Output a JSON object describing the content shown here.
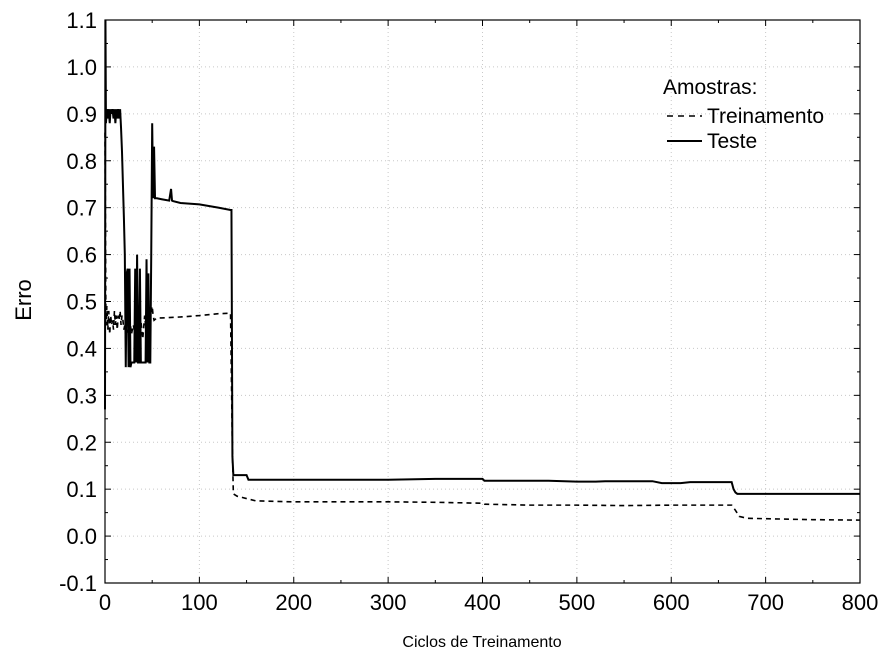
{
  "chart_data": {
    "type": "line",
    "title": "",
    "xlabel": "Ciclos de Treinamento",
    "ylabel": "Erro",
    "xlim": [
      0,
      800
    ],
    "ylim": [
      -0.1,
      1.1
    ],
    "x_ticks": [
      "0",
      "100",
      "200",
      "300",
      "400",
      "500",
      "600",
      "700",
      "800"
    ],
    "x_tick_values": [
      0,
      100,
      200,
      300,
      400,
      500,
      600,
      700,
      800
    ],
    "y_ticks": [
      "-0.1",
      "0.0",
      "0.1",
      "0.2",
      "0.3",
      "0.4",
      "0.5",
      "0.6",
      "0.7",
      "0.8",
      "0.9",
      "1.0",
      "1.1"
    ],
    "y_tick_values": [
      -0.1,
      0.0,
      0.1,
      0.2,
      0.3,
      0.4,
      0.5,
      0.6,
      0.7,
      0.8,
      0.9,
      1.0,
      1.1
    ],
    "grid": true,
    "legend": {
      "title": "Amostras:",
      "placement": "top-right"
    },
    "series": [
      {
        "name": "Treinamento",
        "style": "dashed",
        "color": "#000000",
        "x": [
          0,
          1,
          2,
          3,
          4,
          5,
          6,
          7,
          8,
          9,
          10,
          11,
          12,
          13,
          14,
          15,
          16,
          17,
          18,
          19,
          20,
          21,
          22,
          23,
          24,
          25,
          26,
          27,
          28,
          29,
          30,
          32,
          34,
          36,
          38,
          40,
          42,
          44,
          46,
          48,
          50,
          51,
          52,
          55,
          60,
          80,
          100,
          120,
          133,
          134,
          135,
          136,
          140,
          150,
          160,
          200,
          250,
          300,
          350,
          400,
          402,
          450,
          500,
          550,
          600,
          650,
          664,
          668,
          672,
          680,
          700,
          750,
          800
        ],
        "y": [
          0.86,
          0.45,
          0.49,
          0.44,
          0.48,
          0.43,
          0.47,
          0.45,
          0.46,
          0.44,
          0.48,
          0.45,
          0.47,
          0.44,
          0.47,
          0.46,
          0.48,
          0.45,
          0.47,
          0.46,
          0.44,
          0.45,
          0.43,
          0.44,
          0.43,
          0.44,
          0.43,
          0.45,
          0.43,
          0.44,
          0.45,
          0.43,
          0.44,
          0.45,
          0.46,
          0.42,
          0.47,
          0.43,
          0.45,
          0.47,
          0.49,
          0.47,
          0.46,
          0.465,
          0.465,
          0.467,
          0.47,
          0.474,
          0.475,
          0.33,
          0.18,
          0.09,
          0.085,
          0.08,
          0.075,
          0.073,
          0.073,
          0.073,
          0.072,
          0.07,
          0.068,
          0.066,
          0.066,
          0.065,
          0.066,
          0.066,
          0.066,
          0.055,
          0.042,
          0.038,
          0.037,
          0.035,
          0.034
        ]
      },
      {
        "name": "Teste",
        "style": "solid",
        "color": "#000000",
        "x": [
          0,
          0.5,
          1,
          2,
          3,
          4,
          5,
          6,
          7,
          8,
          9,
          10,
          11,
          12,
          13,
          14,
          15,
          16,
          17,
          18,
          19,
          20,
          21,
          22,
          23,
          24,
          25,
          26,
          27,
          28,
          29,
          30,
          31,
          32,
          33,
          34,
          35,
          36,
          37,
          38,
          39,
          40,
          41,
          42,
          43,
          44,
          45,
          46,
          47,
          48,
          49,
          50,
          51,
          52,
          53,
          55,
          60,
          68,
          70,
          71,
          72,
          80,
          100,
          120,
          133,
          134,
          135,
          136,
          140,
          150,
          152,
          160,
          200,
          250,
          300,
          350,
          380,
          400,
          402,
          450,
          460,
          470,
          500,
          520,
          530,
          580,
          590,
          610,
          620,
          664,
          666,
          668,
          670,
          680,
          700,
          750,
          800
        ],
        "y": [
          0.27,
          1.1,
          0.88,
          0.91,
          0.89,
          0.91,
          0.88,
          0.91,
          0.9,
          0.91,
          0.89,
          0.91,
          0.88,
          0.91,
          0.89,
          0.91,
          0.89,
          0.91,
          0.87,
          0.82,
          0.75,
          0.68,
          0.6,
          0.36,
          0.56,
          0.57,
          0.36,
          0.57,
          0.36,
          0.37,
          0.37,
          0.37,
          0.37,
          0.57,
          0.37,
          0.6,
          0.37,
          0.37,
          0.57,
          0.37,
          0.37,
          0.37,
          0.37,
          0.37,
          0.37,
          0.59,
          0.37,
          0.56,
          0.37,
          0.37,
          0.6,
          0.88,
          0.72,
          0.83,
          0.72,
          0.72,
          0.718,
          0.715,
          0.74,
          0.715,
          0.714,
          0.71,
          0.707,
          0.7,
          0.695,
          0.695,
          0.17,
          0.13,
          0.13,
          0.13,
          0.12,
          0.12,
          0.12,
          0.12,
          0.12,
          0.122,
          0.122,
          0.122,
          0.118,
          0.118,
          0.118,
          0.118,
          0.116,
          0.116,
          0.117,
          0.117,
          0.113,
          0.113,
          0.115,
          0.115,
          0.1,
          0.093,
          0.09,
          0.09,
          0.09,
          0.09,
          0.09
        ]
      }
    ]
  }
}
